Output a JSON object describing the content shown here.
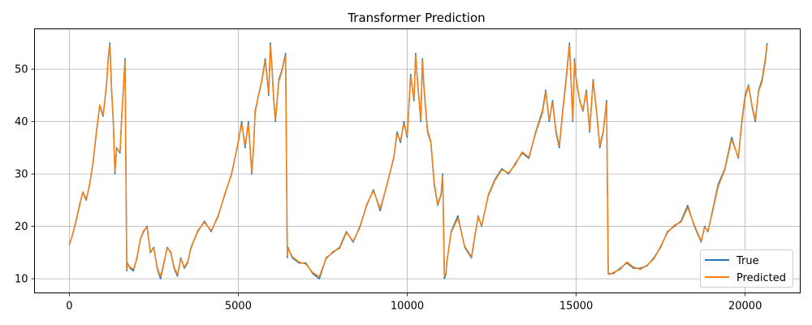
{
  "chart_data": {
    "type": "line",
    "title": "Transformer Prediction",
    "xlabel": "",
    "ylabel": "",
    "xlim": [
      -1030,
      21630
    ],
    "ylim": [
      7.3,
      57.7
    ],
    "xticks": [
      0,
      5000,
      10000,
      15000,
      20000
    ],
    "yticks": [
      10,
      20,
      30,
      40,
      50
    ],
    "grid": true,
    "legend": "lower-right",
    "series": [
      {
        "name": "True",
        "color": "#1f77b4",
        "x": [
          0,
          100,
          200,
          300,
          400,
          500,
          600,
          700,
          800,
          900,
          1000,
          1100,
          1150,
          1200,
          1250,
          1300,
          1350,
          1400,
          1500,
          1550,
          1600,
          1650,
          1700,
          1720,
          1800,
          1900,
          2000,
          2100,
          2200,
          2300,
          2400,
          2500,
          2600,
          2700,
          2800,
          2900,
          3000,
          3100,
          3200,
          3300,
          3400,
          3500,
          3600,
          3800,
          4000,
          4200,
          4400,
          4600,
          4800,
          5000,
          5100,
          5200,
          5300,
          5400,
          5450,
          5500,
          5600,
          5700,
          5800,
          5900,
          5950,
          6000,
          6050,
          6100,
          6200,
          6300,
          6400,
          6450,
          6470,
          6600,
          6800,
          7000,
          7200,
          7400,
          7500,
          7600,
          7800,
          8000,
          8200,
          8400,
          8600,
          8800,
          9000,
          9200,
          9400,
          9600,
          9700,
          9800,
          9900,
          10000,
          10100,
          10200,
          10250,
          10300,
          10400,
          10450,
          10500,
          10600,
          10700,
          10800,
          10900,
          11000,
          11050,
          11100,
          11150,
          11170,
          11300,
          11500,
          11700,
          11900,
          12000,
          12100,
          12200,
          12400,
          12600,
          12800,
          13000,
          13200,
          13400,
          13600,
          13800,
          14000,
          14100,
          14200,
          14300,
          14400,
          14500,
          14600,
          14700,
          14800,
          14900,
          14950,
          15000,
          15100,
          15200,
          15300,
          15400,
          15500,
          15600,
          15700,
          15800,
          15900,
          15950,
          15970,
          16100,
          16300,
          16500,
          16700,
          16900,
          17100,
          17300,
          17500,
          17700,
          17900,
          18100,
          18300,
          18500,
          18700,
          18800,
          18900,
          19000,
          19200,
          19400,
          19600,
          19800,
          19900,
          20000,
          20100,
          20200,
          20300,
          20400,
          20500,
          20600,
          20650
        ],
        "y": [
          16.5,
          18.5,
          21,
          24,
          26.5,
          25,
          28,
          32,
          38,
          43,
          41,
          47,
          52,
          55,
          46,
          40,
          30,
          35,
          34,
          41,
          46,
          52,
          11.5,
          13,
          12,
          11.5,
          14,
          17.5,
          19,
          20,
          15,
          16,
          12,
          10,
          13,
          16,
          15,
          12,
          10.5,
          14,
          12,
          13,
          16,
          19,
          21,
          19,
          22,
          26,
          30,
          36,
          40,
          35,
          40,
          30,
          35,
          42,
          45,
          48,
          52,
          45,
          55,
          50,
          44,
          40,
          48,
          50,
          53,
          14,
          16,
          14,
          13,
          13,
          11,
          10,
          12,
          14,
          15,
          16,
          19,
          17,
          20,
          24,
          27,
          23,
          28,
          33,
          38,
          36,
          40,
          37,
          49,
          44,
          53,
          48,
          40,
          52,
          46,
          38,
          36,
          28,
          24,
          26,
          30,
          10,
          11,
          13,
          19,
          22,
          16,
          14,
          18,
          22,
          20,
          26,
          29,
          31,
          30,
          32,
          34,
          33,
          38,
          42,
          46,
          40,
          44,
          38,
          35,
          42,
          48,
          55,
          40,
          52,
          48,
          44,
          42,
          46,
          38,
          48,
          42,
          35,
          38,
          44,
          11,
          11,
          11,
          12,
          13,
          12,
          12,
          12.5,
          14,
          16,
          19,
          20,
          21,
          24,
          20,
          17,
          20,
          19,
          22,
          28,
          31,
          37,
          33,
          40,
          45,
          47,
          43,
          40,
          46,
          48,
          52,
          55
        ],
        "width": 1.5
      },
      {
        "name": "Predicted",
        "color": "#ff7f0e",
        "x": [
          0,
          100,
          200,
          300,
          400,
          500,
          600,
          700,
          800,
          900,
          1000,
          1100,
          1150,
          1200,
          1250,
          1300,
          1350,
          1400,
          1500,
          1550,
          1600,
          1650,
          1700,
          1720,
          1800,
          1900,
          2000,
          2100,
          2200,
          2300,
          2400,
          2500,
          2600,
          2700,
          2800,
          2900,
          3000,
          3100,
          3200,
          3300,
          3400,
          3500,
          3600,
          3800,
          4000,
          4200,
          4400,
          4600,
          4800,
          5000,
          5100,
          5200,
          5300,
          5400,
          5450,
          5500,
          5600,
          5700,
          5800,
          5900,
          5950,
          6000,
          6050,
          6100,
          6200,
          6300,
          6400,
          6450,
          6470,
          6600,
          6800,
          7000,
          7200,
          7400,
          7500,
          7600,
          7800,
          8000,
          8200,
          8400,
          8600,
          8800,
          9000,
          9200,
          9400,
          9600,
          9700,
          9800,
          9900,
          10000,
          10100,
          10200,
          10250,
          10300,
          10400,
          10450,
          10500,
          10600,
          10700,
          10800,
          10900,
          11000,
          11050,
          11100,
          11150,
          11170,
          11300,
          11500,
          11700,
          11900,
          12000,
          12100,
          12200,
          12400,
          12600,
          12800,
          13000,
          13200,
          13400,
          13600,
          13800,
          14000,
          14100,
          14200,
          14300,
          14400,
          14500,
          14600,
          14700,
          14800,
          14900,
          14950,
          15000,
          15100,
          15200,
          15300,
          15400,
          15500,
          15600,
          15700,
          15800,
          15900,
          15950,
          15970,
          16100,
          16300,
          16500,
          16700,
          16900,
          17100,
          17300,
          17500,
          17700,
          17900,
          18100,
          18300,
          18500,
          18700,
          18800,
          18900,
          19000,
          19200,
          19400,
          19600,
          19800,
          19900,
          20000,
          20100,
          20200,
          20300,
          20400,
          20500,
          20600,
          20650
        ],
        "y": [
          16.6,
          18.4,
          21.2,
          23.8,
          26.6,
          25.2,
          27.8,
          32.2,
          37.8,
          43.2,
          41.2,
          46.8,
          51.8,
          54.6,
          46.4,
          40.2,
          30.4,
          34.8,
          34.2,
          40.8,
          46.2,
          51.6,
          11.8,
          12.8,
          12.2,
          11.8,
          13.8,
          17.6,
          19.2,
          19.8,
          15.2,
          15.8,
          12.2,
          10.4,
          13.2,
          15.8,
          15.2,
          12.2,
          10.8,
          13.8,
          12.2,
          13.2,
          15.8,
          19.2,
          20.8,
          19.2,
          21.8,
          26.2,
          29.8,
          36.2,
          39.6,
          35.4,
          39.6,
          30.4,
          34.8,
          41.6,
          45.2,
          47.8,
          51.6,
          45.4,
          54.6,
          49.8,
          44.2,
          40.4,
          47.6,
          49.8,
          52.6,
          14.4,
          15.8,
          14.2,
          13.2,
          12.8,
          11.2,
          10.4,
          12.2,
          13.8,
          15.2,
          15.8,
          18.8,
          17.2,
          19.8,
          24.2,
          26.8,
          23.4,
          27.8,
          33.2,
          37.6,
          36.4,
          39.6,
          37.4,
          48.6,
          44.4,
          52.6,
          48.2,
          40.4,
          51.6,
          46.2,
          38.4,
          36.2,
          28.4,
          24.2,
          26.2,
          29.6,
          10.4,
          11.2,
          13.2,
          18.8,
          21.6,
          16.2,
          14.2,
          18.2,
          21.8,
          20.2,
          25.8,
          28.8,
          30.8,
          30.2,
          31.8,
          34.2,
          33.2,
          37.8,
          41.6,
          45.6,
          40.4,
          43.6,
          38.4,
          35.4,
          41.6,
          47.6,
          54.6,
          40.4,
          51.6,
          48.2,
          44.2,
          42.2,
          45.6,
          38.4,
          47.6,
          42.2,
          35.4,
          38.2,
          43.6,
          11.2,
          10.8,
          11.2,
          11.8,
          13.2,
          12.2,
          11.8,
          12.6,
          13.8,
          16.2,
          18.8,
          20.2,
          20.8,
          23.6,
          20.2,
          17.2,
          19.8,
          19.2,
          21.8,
          27.6,
          30.8,
          36.6,
          33.2,
          39.6,
          44.6,
          46.8,
          43.2,
          40.4,
          45.8,
          47.6,
          51.6,
          54.6
        ],
        "width": 1.5
      }
    ]
  }
}
